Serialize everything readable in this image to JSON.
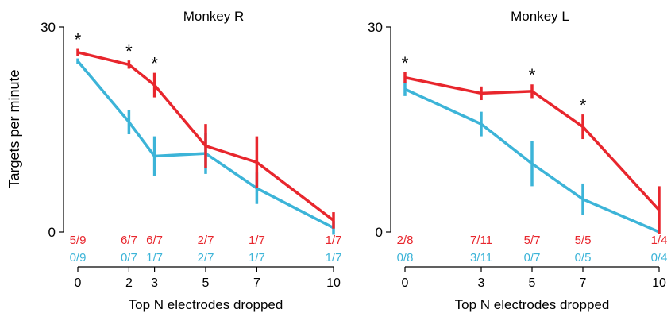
{
  "figure": {
    "ylabel": "Targets per minute",
    "colors": {
      "series_a": "#e8262d",
      "series_b": "#3cb4d8",
      "axis": "#000000"
    }
  },
  "chart_data": [
    {
      "type": "line",
      "title": "Monkey R",
      "xlabel": "Top N electrodes dropped",
      "ylabel": "Targets per minute",
      "ylim": [
        0,
        30
      ],
      "yticks": [
        "0",
        "30"
      ],
      "xlim": [
        0,
        10
      ],
      "x": [
        0,
        2,
        3,
        5,
        7,
        10
      ],
      "xticks": [
        "0",
        "2",
        "3",
        "5",
        "7",
        "10"
      ],
      "grid": false,
      "series": [
        {
          "color": "#e8262d",
          "values": [
            26.3,
            24.5,
            21.5,
            12.6,
            10.2,
            1.7
          ],
          "err": [
            0.5,
            0.6,
            1.8,
            3.2,
            3.8,
            1.2
          ],
          "counts": [
            "5/9",
            "6/7",
            "6/7",
            "2/7",
            "1/7",
            "1/7"
          ]
        },
        {
          "color": "#3cb4d8",
          "values": [
            25.0,
            16.1,
            11.1,
            11.5,
            6.4,
            0.6
          ],
          "err": [
            0.4,
            1.8,
            2.9,
            3.0,
            2.3,
            1.0
          ],
          "counts": [
            "0/9",
            "0/7",
            "1/7",
            "2/7",
            "1/7",
            "1/7"
          ]
        }
      ],
      "significance": [
        {
          "x": 0,
          "label": "*"
        },
        {
          "x": 2,
          "label": "*"
        },
        {
          "x": 3,
          "label": "*"
        }
      ]
    },
    {
      "type": "line",
      "title": "Monkey L",
      "xlabel": "Top N electrodes dropped",
      "ylabel": "",
      "ylim": [
        0,
        30
      ],
      "yticks": [
        "0",
        "30"
      ],
      "xlim": [
        0,
        10
      ],
      "x": [
        0,
        3,
        5,
        7,
        10
      ],
      "xticks": [
        "0",
        "3",
        "5",
        "7",
        "10"
      ],
      "grid": false,
      "series": [
        {
          "color": "#e8262d",
          "values": [
            22.6,
            20.3,
            20.6,
            15.4,
            3.2
          ],
          "err": [
            0.8,
            1.0,
            1.0,
            1.8,
            3.5
          ],
          "counts": [
            "2/8",
            "7/11",
            "5/7",
            "5/5",
            "1/4"
          ]
        },
        {
          "color": "#3cb4d8",
          "values": [
            20.9,
            15.8,
            10.0,
            4.8,
            0.0
          ],
          "err": [
            1.0,
            1.8,
            3.3,
            2.3,
            0.0
          ],
          "counts": [
            "0/8",
            "3/11",
            "0/7",
            "0/5",
            "0/4"
          ]
        }
      ],
      "significance": [
        {
          "x": 0,
          "label": "*"
        },
        {
          "x": 5,
          "label": "*"
        },
        {
          "x": 7,
          "label": "*"
        }
      ]
    }
  ]
}
